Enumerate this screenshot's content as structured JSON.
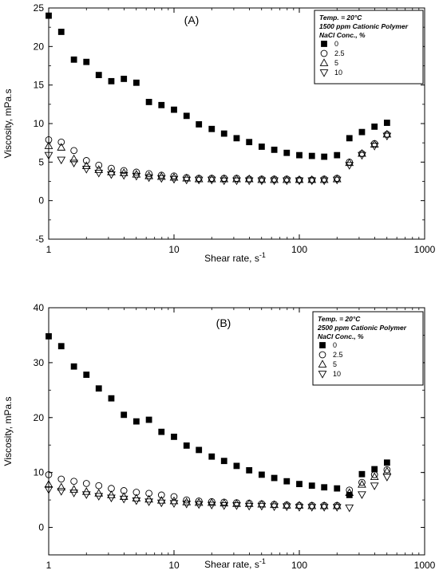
{
  "chart_data": [
    {
      "type": "scatter",
      "panel_label": "(A)",
      "xlabel": "Shear rate, s",
      "xlabel_sup": "-1",
      "ylabel": "Viscosity, mPa.s",
      "xscale": "log",
      "xlim": [
        1,
        1000
      ],
      "ylim": [
        -5,
        25
      ],
      "yticks": [
        "-5",
        "0",
        "5",
        "10",
        "15",
        "20",
        "25"
      ],
      "xticks": [
        "1",
        "10",
        "100",
        "1000"
      ],
      "legend": {
        "position": "top-right",
        "line1": "Temp. = 20°C",
        "line2": "1500 ppm Cationic Polymer",
        "line3": "NaCl Conc., %",
        "items": [
          "0",
          "2.5",
          "5",
          "10"
        ]
      },
      "series": [
        {
          "name": "0",
          "marker": "filled-square",
          "x": [
            1,
            1.26,
            1.59,
            2,
            2.51,
            3.16,
            3.98,
            5.01,
            6.31,
            7.94,
            10,
            12.6,
            15.8,
            20,
            25.1,
            31.6,
            39.8,
            50.1,
            63.1,
            79.4,
            100,
            126,
            158,
            200,
            251,
            316,
            398,
            501
          ],
          "y": [
            24.0,
            21.9,
            18.3,
            18.0,
            16.3,
            15.5,
            15.8,
            15.3,
            12.8,
            12.4,
            11.8,
            11.0,
            9.9,
            9.3,
            8.7,
            8.1,
            7.6,
            7.0,
            6.6,
            6.2,
            5.9,
            5.8,
            5.7,
            5.9,
            8.1,
            8.9,
            9.6,
            10.1
          ]
        },
        {
          "name": "2.5",
          "marker": "open-circle",
          "x": [
            1,
            1.26,
            1.59,
            2,
            2.51,
            3.16,
            3.98,
            5.01,
            6.31,
            7.94,
            10,
            12.6,
            15.8,
            20,
            25.1,
            31.6,
            39.8,
            50.1,
            63.1,
            79.4,
            100,
            126,
            158,
            200,
            251,
            316,
            398,
            501
          ],
          "y": [
            7.9,
            7.6,
            6.5,
            5.2,
            4.6,
            4.2,
            3.9,
            3.7,
            3.5,
            3.3,
            3.2,
            3.0,
            2.9,
            2.9,
            2.9,
            2.9,
            2.8,
            2.8,
            2.8,
            2.8,
            2.7,
            2.7,
            2.8,
            2.9,
            5.0,
            6.1,
            7.4,
            8.6
          ]
        },
        {
          "name": "5",
          "marker": "open-triangle-up",
          "x": [
            1,
            1.26,
            1.59,
            2,
            2.51,
            3.16,
            3.98,
            5.01,
            6.31,
            7.94,
            10,
            12.6,
            15.8,
            20,
            25.1,
            31.6,
            39.8,
            50.1,
            63.1,
            79.4,
            100,
            126,
            158,
            200,
            251,
            316,
            398,
            501
          ],
          "y": [
            7.1,
            6.9,
            5.4,
            4.5,
            4.0,
            3.7,
            3.6,
            3.4,
            3.2,
            3.1,
            3.0,
            2.9,
            2.8,
            2.8,
            2.8,
            2.8,
            2.8,
            2.7,
            2.7,
            2.7,
            2.7,
            2.7,
            2.7,
            2.8,
            4.9,
            6.1,
            7.3,
            8.6
          ]
        },
        {
          "name": "10",
          "marker": "open-triangle-down",
          "x": [
            1,
            1.26,
            1.59,
            2,
            2.51,
            3.16,
            3.98,
            5.01,
            6.31,
            7.94,
            10,
            12.6,
            15.8,
            20,
            25.1,
            31.6,
            39.8,
            50.1,
            63.1,
            79.4,
            100,
            126,
            158,
            200,
            251,
            316,
            398,
            501
          ],
          "y": [
            5.9,
            5.3,
            4.9,
            4.1,
            3.6,
            3.4,
            3.3,
            3.2,
            3.0,
            2.9,
            2.8,
            2.7,
            2.7,
            2.7,
            2.6,
            2.6,
            2.6,
            2.6,
            2.6,
            2.6,
            2.6,
            2.6,
            2.6,
            2.7,
            4.6,
            5.9,
            7.1,
            8.4
          ]
        }
      ]
    },
    {
      "type": "scatter",
      "panel_label": "(B)",
      "xlabel": "Shear rate, s",
      "xlabel_sup": "-1",
      "ylabel": "Viscosity, mPa.s",
      "xscale": "log",
      "xlim": [
        1,
        1000
      ],
      "ylim": [
        -5,
        40
      ],
      "yticks": [
        "0",
        "10",
        "20",
        "30",
        "40"
      ],
      "xticks": [
        "1",
        "10",
        "100",
        "1000"
      ],
      "legend": {
        "position": "top-right",
        "line1": "Temp. = 20°C",
        "line2": "2500 ppm Cationic Polymer",
        "line3": "NaCl Conc., %",
        "items": [
          "0",
          "2.5",
          "5",
          "10"
        ]
      },
      "series": [
        {
          "name": "0",
          "marker": "filled-square",
          "x": [
            1,
            1.26,
            1.59,
            2,
            2.51,
            3.16,
            3.98,
            5.01,
            6.31,
            7.94,
            10,
            12.6,
            15.8,
            20,
            25.1,
            31.6,
            39.8,
            50.1,
            63.1,
            79.4,
            100,
            126,
            158,
            200,
            251,
            316,
            398,
            501
          ],
          "y": [
            34.8,
            33.0,
            29.3,
            27.8,
            25.3,
            23.5,
            20.5,
            19.3,
            19.6,
            17.4,
            16.5,
            14.9,
            14.1,
            12.9,
            12.1,
            11.2,
            10.4,
            9.6,
            9.0,
            8.4,
            7.9,
            7.6,
            7.3,
            7.1,
            5.9,
            9.7,
            10.6,
            11.8
          ]
        },
        {
          "name": "2.5",
          "marker": "open-circle",
          "x": [
            1,
            1.26,
            1.59,
            2,
            2.51,
            3.16,
            3.98,
            5.01,
            6.31,
            7.94,
            10,
            12.6,
            15.8,
            20,
            25.1,
            31.6,
            39.8,
            50.1,
            63.1,
            79.4,
            100,
            126,
            158,
            200,
            251,
            316,
            398,
            501
          ],
          "y": [
            9.6,
            8.8,
            8.4,
            8.0,
            7.6,
            7.1,
            6.7,
            6.4,
            6.2,
            5.9,
            5.6,
            5.0,
            4.8,
            4.7,
            4.6,
            4.5,
            4.4,
            4.3,
            4.2,
            4.1,
            4.0,
            4.0,
            4.0,
            4.0,
            6.8,
            8.2,
            9.6,
            10.5
          ]
        },
        {
          "name": "5",
          "marker": "open-triangle-up",
          "x": [
            1,
            1.26,
            1.59,
            2,
            2.51,
            3.16,
            3.98,
            5.01,
            6.31,
            7.94,
            10,
            12.6,
            15.8,
            20,
            25.1,
            31.6,
            39.8,
            50.1,
            63.1,
            79.4,
            100,
            126,
            158,
            200,
            251,
            316,
            398,
            501
          ],
          "y": [
            7.8,
            7.3,
            6.9,
            6.5,
            6.2,
            5.9,
            5.6,
            5.3,
            5.1,
            4.9,
            4.8,
            4.6,
            4.5,
            4.5,
            4.4,
            4.3,
            4.3,
            4.2,
            4.1,
            4.0,
            4.0,
            3.9,
            3.9,
            3.9,
            6.3,
            7.8,
            9.2,
            10.2
          ]
        },
        {
          "name": "10",
          "marker": "open-triangle-down",
          "x": [
            1,
            1.26,
            1.59,
            2,
            2.51,
            3.16,
            3.98,
            5.01,
            6.31,
            7.94,
            10,
            12.6,
            15.8,
            20,
            25.1,
            31.6,
            39.8,
            50.1,
            63.1,
            79.4,
            100,
            126,
            158,
            200,
            251,
            316,
            398,
            501
          ],
          "y": [
            6.9,
            6.6,
            6.3,
            6.0,
            5.7,
            5.4,
            5.2,
            4.9,
            4.7,
            4.5,
            4.4,
            4.3,
            4.2,
            4.1,
            4.0,
            4.0,
            3.9,
            3.9,
            3.8,
            3.8,
            3.7,
            3.7,
            3.7,
            3.7,
            3.6,
            6.0,
            7.6,
            9.2
          ]
        }
      ]
    }
  ]
}
